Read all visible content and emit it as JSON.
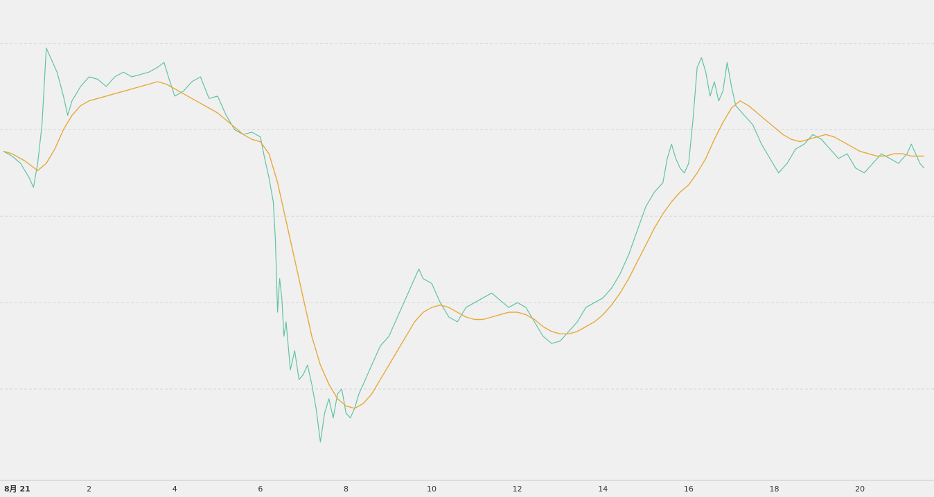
{
  "chart_data": {
    "type": "line",
    "title": "",
    "xlabel": "",
    "ylabel": "",
    "x_tick_labels": [
      {
        "day": 0,
        "label": "8月  21"
      },
      {
        "day": 2,
        "label": "2"
      },
      {
        "day": 4,
        "label": "4"
      },
      {
        "day": 6,
        "label": "6"
      },
      {
        "day": 8,
        "label": "8"
      },
      {
        "day": 10,
        "label": "10"
      },
      {
        "day": 12,
        "label": "12"
      },
      {
        "day": 14,
        "label": "14"
      },
      {
        "day": 16,
        "label": "16"
      },
      {
        "day": 18,
        "label": "18"
      },
      {
        "day": 20,
        "label": "20"
      }
    ],
    "xlim": [
      0,
      21.6
    ],
    "ylim": [
      0,
      100
    ],
    "grid": {
      "horizontal": true,
      "vertical": false,
      "style": "dashed"
    },
    "y_gridlines": [
      19,
      37,
      55,
      73,
      91
    ],
    "legend": "none",
    "series": [
      {
        "kind": "price",
        "color": "#5ec4a0",
        "points": [
          [
            0.0,
            68.5
          ],
          [
            0.2,
            67.5
          ],
          [
            0.4,
            66
          ],
          [
            0.6,
            63
          ],
          [
            0.7,
            61
          ],
          [
            0.8,
            66
          ],
          [
            0.9,
            74
          ],
          [
            1.0,
            90
          ],
          [
            1.1,
            88
          ],
          [
            1.25,
            85
          ],
          [
            1.4,
            80
          ],
          [
            1.5,
            76
          ],
          [
            1.6,
            79
          ],
          [
            1.8,
            82
          ],
          [
            2.0,
            84
          ],
          [
            2.2,
            83.5
          ],
          [
            2.4,
            82
          ],
          [
            2.6,
            84
          ],
          [
            2.8,
            85
          ],
          [
            3.0,
            84
          ],
          [
            3.2,
            84.5
          ],
          [
            3.4,
            85
          ],
          [
            3.6,
            86
          ],
          [
            3.75,
            87
          ],
          [
            3.85,
            84
          ],
          [
            4.0,
            80
          ],
          [
            4.2,
            81
          ],
          [
            4.4,
            83
          ],
          [
            4.6,
            84
          ],
          [
            4.8,
            79.5
          ],
          [
            5.0,
            80
          ],
          [
            5.2,
            76
          ],
          [
            5.4,
            73
          ],
          [
            5.6,
            72
          ],
          [
            5.8,
            72.5
          ],
          [
            6.0,
            71.5
          ],
          [
            6.1,
            67
          ],
          [
            6.2,
            63
          ],
          [
            6.3,
            58
          ],
          [
            6.35,
            50
          ],
          [
            6.4,
            35
          ],
          [
            6.45,
            42
          ],
          [
            6.5,
            38
          ],
          [
            6.55,
            30
          ],
          [
            6.6,
            33
          ],
          [
            6.7,
            23
          ],
          [
            6.8,
            27
          ],
          [
            6.9,
            21
          ],
          [
            7.0,
            22
          ],
          [
            7.1,
            24
          ],
          [
            7.2,
            20
          ],
          [
            7.3,
            15
          ],
          [
            7.4,
            8
          ],
          [
            7.5,
            14
          ],
          [
            7.6,
            17
          ],
          [
            7.7,
            13
          ],
          [
            7.8,
            18
          ],
          [
            7.9,
            19
          ],
          [
            8.0,
            14
          ],
          [
            8.1,
            13
          ],
          [
            8.2,
            15
          ],
          [
            8.3,
            18
          ],
          [
            8.4,
            20
          ],
          [
            8.6,
            24
          ],
          [
            8.8,
            28
          ],
          [
            9.0,
            30
          ],
          [
            9.2,
            34
          ],
          [
            9.4,
            38
          ],
          [
            9.6,
            42
          ],
          [
            9.7,
            44
          ],
          [
            9.8,
            42
          ],
          [
            10.0,
            41
          ],
          [
            10.2,
            37
          ],
          [
            10.4,
            34
          ],
          [
            10.6,
            33
          ],
          [
            10.8,
            36
          ],
          [
            11.0,
            37
          ],
          [
            11.2,
            38
          ],
          [
            11.4,
            39
          ],
          [
            11.6,
            37.5
          ],
          [
            11.8,
            36
          ],
          [
            12.0,
            37
          ],
          [
            12.2,
            36
          ],
          [
            12.4,
            33
          ],
          [
            12.6,
            30
          ],
          [
            12.8,
            28.5
          ],
          [
            13.0,
            29
          ],
          [
            13.2,
            31
          ],
          [
            13.4,
            33
          ],
          [
            13.6,
            36
          ],
          [
            13.8,
            37
          ],
          [
            14.0,
            38
          ],
          [
            14.2,
            40
          ],
          [
            14.4,
            43
          ],
          [
            14.6,
            47
          ],
          [
            14.8,
            52
          ],
          [
            15.0,
            57
          ],
          [
            15.2,
            60
          ],
          [
            15.4,
            62
          ],
          [
            15.5,
            67
          ],
          [
            15.6,
            70
          ],
          [
            15.7,
            67
          ],
          [
            15.8,
            65
          ],
          [
            15.9,
            64
          ],
          [
            16.0,
            66
          ],
          [
            16.1,
            75
          ],
          [
            16.2,
            86
          ],
          [
            16.3,
            88
          ],
          [
            16.4,
            85
          ],
          [
            16.5,
            80
          ],
          [
            16.6,
            83
          ],
          [
            16.7,
            79
          ],
          [
            16.8,
            81
          ],
          [
            16.9,
            87
          ],
          [
            17.0,
            82
          ],
          [
            17.1,
            78
          ],
          [
            17.3,
            76
          ],
          [
            17.5,
            74
          ],
          [
            17.7,
            70
          ],
          [
            17.9,
            67
          ],
          [
            18.1,
            64
          ],
          [
            18.3,
            66
          ],
          [
            18.5,
            69
          ],
          [
            18.7,
            70
          ],
          [
            18.9,
            72
          ],
          [
            19.1,
            71
          ],
          [
            19.3,
            69
          ],
          [
            19.5,
            67
          ],
          [
            19.7,
            68
          ],
          [
            19.9,
            65
          ],
          [
            20.1,
            64
          ],
          [
            20.3,
            66
          ],
          [
            20.5,
            68
          ],
          [
            20.7,
            67
          ],
          [
            20.9,
            66
          ],
          [
            21.1,
            68
          ],
          [
            21.2,
            70
          ],
          [
            21.3,
            68
          ],
          [
            21.4,
            66
          ],
          [
            21.5,
            65
          ]
        ]
      },
      {
        "kind": "moving-average",
        "color": "#e8a838",
        "points": [
          [
            0.0,
            68.5
          ],
          [
            0.2,
            68
          ],
          [
            0.5,
            66.5
          ],
          [
            0.8,
            64.5
          ],
          [
            1.0,
            66
          ],
          [
            1.2,
            69
          ],
          [
            1.4,
            73
          ],
          [
            1.6,
            76
          ],
          [
            1.8,
            78
          ],
          [
            2.0,
            79
          ],
          [
            2.2,
            79.5
          ],
          [
            2.4,
            80
          ],
          [
            2.6,
            80.5
          ],
          [
            2.8,
            81
          ],
          [
            3.0,
            81.5
          ],
          [
            3.2,
            82
          ],
          [
            3.4,
            82.5
          ],
          [
            3.6,
            83
          ],
          [
            3.8,
            82.5
          ],
          [
            4.0,
            81.5
          ],
          [
            4.2,
            80.5
          ],
          [
            4.4,
            79.5
          ],
          [
            4.6,
            78.5
          ],
          [
            4.8,
            77.5
          ],
          [
            5.0,
            76.5
          ],
          [
            5.2,
            75
          ],
          [
            5.4,
            73.5
          ],
          [
            5.6,
            72
          ],
          [
            5.8,
            71
          ],
          [
            6.0,
            70.5
          ],
          [
            6.2,
            68
          ],
          [
            6.4,
            62
          ],
          [
            6.6,
            54
          ],
          [
            6.8,
            46
          ],
          [
            7.0,
            38
          ],
          [
            7.2,
            30
          ],
          [
            7.4,
            24
          ],
          [
            7.6,
            20
          ],
          [
            7.8,
            17
          ],
          [
            8.0,
            15.5
          ],
          [
            8.2,
            15
          ],
          [
            8.4,
            16
          ],
          [
            8.6,
            18
          ],
          [
            8.8,
            21
          ],
          [
            9.0,
            24
          ],
          [
            9.2,
            27
          ],
          [
            9.4,
            30
          ],
          [
            9.6,
            33
          ],
          [
            9.8,
            35
          ],
          [
            10.0,
            36
          ],
          [
            10.2,
            36.5
          ],
          [
            10.4,
            36
          ],
          [
            10.6,
            35
          ],
          [
            10.8,
            34
          ],
          [
            11.0,
            33.5
          ],
          [
            11.2,
            33.5
          ],
          [
            11.4,
            34
          ],
          [
            11.6,
            34.5
          ],
          [
            11.8,
            35
          ],
          [
            12.0,
            35
          ],
          [
            12.2,
            34.5
          ],
          [
            12.4,
            33.5
          ],
          [
            12.6,
            32
          ],
          [
            12.8,
            31
          ],
          [
            13.0,
            30.5
          ],
          [
            13.2,
            30.5
          ],
          [
            13.4,
            31
          ],
          [
            13.6,
            32
          ],
          [
            13.8,
            33
          ],
          [
            14.0,
            34.5
          ],
          [
            14.2,
            36.5
          ],
          [
            14.4,
            39
          ],
          [
            14.6,
            42
          ],
          [
            14.8,
            45.5
          ],
          [
            15.0,
            49
          ],
          [
            15.2,
            52.5
          ],
          [
            15.4,
            55.5
          ],
          [
            15.6,
            58
          ],
          [
            15.8,
            60
          ],
          [
            16.0,
            61.5
          ],
          [
            16.2,
            64
          ],
          [
            16.4,
            67
          ],
          [
            16.6,
            71
          ],
          [
            16.8,
            74.5
          ],
          [
            17.0,
            77.5
          ],
          [
            17.2,
            79
          ],
          [
            17.4,
            78
          ],
          [
            17.6,
            76.5
          ],
          [
            17.8,
            75
          ],
          [
            18.0,
            73.5
          ],
          [
            18.2,
            72
          ],
          [
            18.4,
            71
          ],
          [
            18.6,
            70.5
          ],
          [
            18.8,
            71
          ],
          [
            19.0,
            71.5
          ],
          [
            19.2,
            72
          ],
          [
            19.4,
            71.5
          ],
          [
            19.6,
            70.5
          ],
          [
            19.8,
            69.5
          ],
          [
            20.0,
            68.5
          ],
          [
            20.2,
            68
          ],
          [
            20.4,
            67.5
          ],
          [
            20.6,
            67.5
          ],
          [
            20.8,
            68
          ],
          [
            21.0,
            68
          ],
          [
            21.2,
            67.5
          ],
          [
            21.4,
            67.5
          ],
          [
            21.5,
            67.5
          ]
        ]
      }
    ]
  }
}
